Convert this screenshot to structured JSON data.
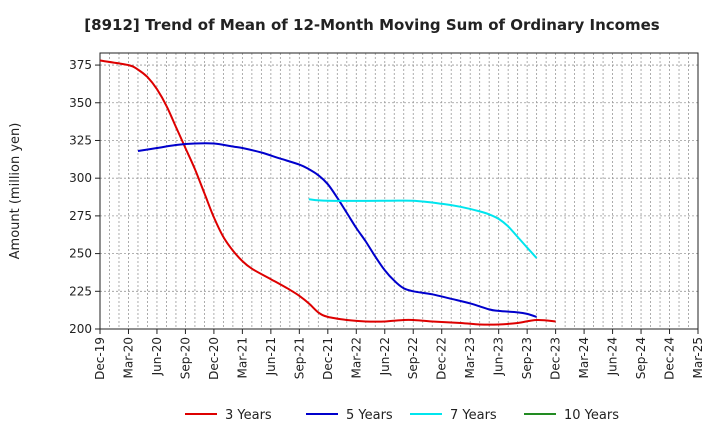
{
  "chart_data": {
    "type": "line",
    "title": "[8912]  Trend of Mean of 12-Month Moving Sum of Ordinary Incomes",
    "xlabel": "",
    "ylabel": "Amount (million yen)",
    "ylim": [
      200,
      383
    ],
    "yticks": [
      200,
      225,
      250,
      275,
      300,
      325,
      350,
      375
    ],
    "x_tick_labels": [
      "Dec-19",
      "Mar-20",
      "Jun-20",
      "Sep-20",
      "Dec-20",
      "Mar-21",
      "Jun-21",
      "Sep-21",
      "Dec-21",
      "Mar-22",
      "Jun-22",
      "Sep-22",
      "Dec-22",
      "Mar-23",
      "Jun-23",
      "Sep-23",
      "Dec-23",
      "Mar-24",
      "Jun-24",
      "Sep-24",
      "Dec-24",
      "Mar-25"
    ],
    "x_range_months": [
      0,
      63
    ],
    "grid": true,
    "legend_position": "bottom",
    "series": [
      {
        "name": "3 Years",
        "color": "#dd0000",
        "points": [
          [
            0,
            378
          ],
          [
            3,
            375
          ],
          [
            4,
            372
          ],
          [
            5,
            367
          ],
          [
            6,
            359
          ],
          [
            7,
            348
          ],
          [
            8,
            334
          ],
          [
            9,
            320
          ],
          [
            10,
            306
          ],
          [
            11,
            290
          ],
          [
            12,
            274
          ],
          [
            13,
            261
          ],
          [
            14,
            252
          ],
          [
            15,
            245
          ],
          [
            16,
            240
          ],
          [
            18,
            233
          ],
          [
            20,
            226
          ],
          [
            21,
            222
          ],
          [
            22,
            217
          ],
          [
            23,
            211
          ],
          [
            24,
            208
          ],
          [
            26,
            206
          ],
          [
            28,
            205
          ],
          [
            30,
            205
          ],
          [
            32,
            206
          ],
          [
            33,
            206
          ],
          [
            35,
            205
          ],
          [
            38,
            204
          ],
          [
            40,
            203
          ],
          [
            42,
            203
          ],
          [
            44,
            204
          ],
          [
            46,
            206
          ],
          [
            48,
            205
          ]
        ]
      },
      {
        "name": "5 Years",
        "color": "#0000cc",
        "points": [
          [
            4,
            318
          ],
          [
            6,
            320
          ],
          [
            8,
            322
          ],
          [
            10,
            323
          ],
          [
            12,
            323
          ],
          [
            14,
            321
          ],
          [
            15,
            320
          ],
          [
            17,
            317
          ],
          [
            19,
            313
          ],
          [
            21,
            309
          ],
          [
            22,
            306
          ],
          [
            23,
            302
          ],
          [
            24,
            296
          ],
          [
            25,
            287
          ],
          [
            26,
            277
          ],
          [
            27,
            267
          ],
          [
            28,
            258
          ],
          [
            29,
            248
          ],
          [
            30,
            239
          ],
          [
            31,
            232
          ],
          [
            32,
            227
          ],
          [
            33,
            225
          ],
          [
            35,
            223
          ],
          [
            37,
            220
          ],
          [
            39,
            217
          ],
          [
            41,
            213
          ],
          [
            42,
            212
          ],
          [
            44,
            211
          ],
          [
            45,
            210
          ],
          [
            46,
            208
          ]
        ]
      },
      {
        "name": "7 Years",
        "color": "#00e5ee",
        "points": [
          [
            22,
            286
          ],
          [
            24,
            285
          ],
          [
            30,
            285
          ],
          [
            33,
            285
          ],
          [
            36,
            283
          ],
          [
            38,
            281
          ],
          [
            40,
            278
          ],
          [
            41,
            276
          ],
          [
            42,
            273
          ],
          [
            43,
            268
          ],
          [
            44,
            261
          ],
          [
            45,
            254
          ],
          [
            46,
            247
          ]
        ]
      },
      {
        "name": "10 Years",
        "color": "#228b22",
        "points": []
      }
    ]
  }
}
